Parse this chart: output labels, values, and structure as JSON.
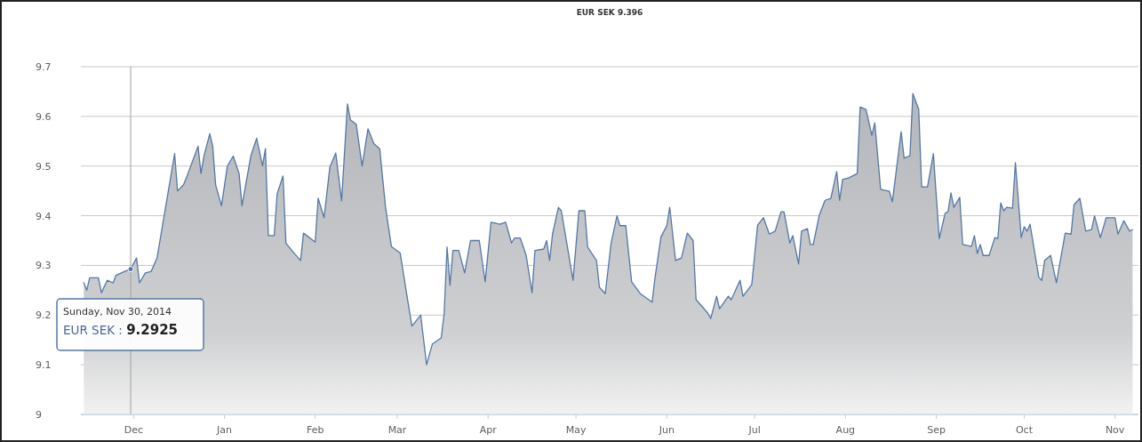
{
  "chart_data": {
    "type": "area",
    "title": "EUR SEK 9.396",
    "xlim": [
      "2014-11-13",
      "2015-11-09"
    ],
    "xticks": [
      {
        "value": "2014-12-01",
        "label": "Dec"
      },
      {
        "value": "2015-01-01",
        "label": "Jan"
      },
      {
        "value": "2015-02-01",
        "label": "Feb"
      },
      {
        "value": "2015-03-01",
        "label": "Mar"
      },
      {
        "value": "2015-04-01",
        "label": "Apr"
      },
      {
        "value": "2015-05-01",
        "label": "May"
      },
      {
        "value": "2015-06-01",
        "label": "Jun"
      },
      {
        "value": "2015-07-01",
        "label": "Jul"
      },
      {
        "value": "2015-08-01",
        "label": "Aug"
      },
      {
        "value": "2015-09-01",
        "label": "Sep"
      },
      {
        "value": "2015-10-01",
        "label": "Oct"
      },
      {
        "value": "2015-11-01",
        "label": "Nov"
      }
    ],
    "ylim": [
      9,
      9.7
    ],
    "yticks": [
      9,
      9.1,
      9.2,
      9.3,
      9.4,
      9.5,
      9.6,
      9.7
    ],
    "grid": "y",
    "marker": "none",
    "line_style": "solid",
    "series": [
      {
        "color": "#5577a6",
        "x": [
          "2014-11-14",
          "2014-11-15",
          "2014-11-16",
          "2014-11-19",
          "2014-11-20",
          "2014-11-22",
          "2014-11-24",
          "2014-11-25",
          "2014-11-28",
          "2014-11-30",
          "2014-12-02",
          "2014-12-03",
          "2014-12-05",
          "2014-12-07",
          "2014-12-09",
          "2014-12-12",
          "2014-12-15",
          "2014-12-16",
          "2014-12-18",
          "2014-12-19",
          "2014-12-23",
          "2014-12-24",
          "2014-12-25",
          "2014-12-27",
          "2014-12-28",
          "2014-12-29",
          "2014-12-31",
          "2015-01-02",
          "2015-01-04",
          "2015-01-06",
          "2015-01-07",
          "2015-01-10",
          "2015-01-12",
          "2015-01-14",
          "2015-01-15",
          "2015-01-16",
          "2015-01-18",
          "2015-01-19",
          "2015-01-21",
          "2015-01-22",
          "2015-01-24",
          "2015-01-27",
          "2015-01-28",
          "2015-02-01",
          "2015-02-02",
          "2015-02-04",
          "2015-02-06",
          "2015-02-08",
          "2015-02-10",
          "2015-02-12",
          "2015-02-13",
          "2015-02-15",
          "2015-02-17",
          "2015-02-19",
          "2015-02-21",
          "2015-02-23",
          "2015-02-25",
          "2015-02-27",
          "2015-03-02",
          "2015-03-04",
          "2015-03-06",
          "2015-03-09",
          "2015-03-11",
          "2015-03-13",
          "2015-03-16",
          "2015-03-17",
          "2015-03-18",
          "2015-03-19",
          "2015-03-20",
          "2015-03-22",
          "2015-03-24",
          "2015-03-26",
          "2015-03-29",
          "2015-03-31",
          "2015-04-02",
          "2015-04-05",
          "2015-04-07",
          "2015-04-09",
          "2015-04-10",
          "2015-04-12",
          "2015-04-14",
          "2015-04-16",
          "2015-04-17",
          "2015-04-20",
          "2015-04-21",
          "2015-04-22",
          "2015-04-23",
          "2015-04-25",
          "2015-04-26",
          "2015-04-30",
          "2015-05-02",
          "2015-05-04",
          "2015-05-05",
          "2015-05-08",
          "2015-05-09",
          "2015-05-11",
          "2015-05-13",
          "2015-05-15",
          "2015-05-16",
          "2015-05-18",
          "2015-05-20",
          "2015-05-23",
          "2015-05-27",
          "2015-05-28",
          "2015-05-30",
          "2015-06-01",
          "2015-06-02",
          "2015-06-04",
          "2015-06-06",
          "2015-06-08",
          "2015-06-10",
          "2015-06-11",
          "2015-06-15",
          "2015-06-16",
          "2015-06-18",
          "2015-06-19",
          "2015-06-22",
          "2015-06-23",
          "2015-06-26",
          "2015-06-27",
          "2015-06-30",
          "2015-07-02",
          "2015-07-04",
          "2015-07-06",
          "2015-07-08",
          "2015-07-10",
          "2015-07-11",
          "2015-07-13",
          "2015-07-14",
          "2015-07-16",
          "2015-07-17",
          "2015-07-19",
          "2015-07-20",
          "2015-07-21",
          "2015-07-23",
          "2015-07-25",
          "2015-07-27",
          "2015-07-29",
          "2015-07-30",
          "2015-07-31",
          "2015-08-02",
          "2015-08-05",
          "2015-08-06",
          "2015-08-08",
          "2015-08-10",
          "2015-08-11",
          "2015-08-13",
          "2015-08-16",
          "2015-08-17",
          "2015-08-20",
          "2015-08-21",
          "2015-08-23",
          "2015-08-24",
          "2015-08-26",
          "2015-08-27",
          "2015-08-29",
          "2015-08-31",
          "2015-09-02",
          "2015-09-04",
          "2015-09-05",
          "2015-09-06",
          "2015-09-07",
          "2015-09-09",
          "2015-09-10",
          "2015-09-13",
          "2015-09-14",
          "2015-09-15",
          "2015-09-16",
          "2015-09-17",
          "2015-09-19",
          "2015-09-21",
          "2015-09-22",
          "2015-09-23",
          "2015-09-24",
          "2015-09-25",
          "2015-09-27",
          "2015-09-28",
          "2015-09-30",
          "2015-10-01",
          "2015-10-02",
          "2015-10-03",
          "2015-10-06",
          "2015-10-07",
          "2015-10-08",
          "2015-10-10",
          "2015-10-12",
          "2015-10-15",
          "2015-10-17",
          "2015-10-18",
          "2015-10-20",
          "2015-10-22",
          "2015-10-24",
          "2015-10-25",
          "2015-10-27",
          "2015-10-29",
          "2015-11-01",
          "2015-11-02",
          "2015-11-04",
          "2015-11-06",
          "2015-11-07"
        ],
        "values": [
          9.265,
          9.25,
          9.275,
          9.275,
          9.245,
          9.27,
          9.265,
          9.28,
          9.288,
          9.2925,
          9.315,
          9.265,
          9.285,
          9.288,
          9.315,
          9.42,
          9.525,
          9.45,
          9.462,
          9.476,
          9.54,
          9.485,
          9.52,
          9.565,
          9.54,
          9.462,
          9.42,
          9.5,
          9.52,
          9.485,
          9.42,
          9.52,
          9.556,
          9.5,
          9.535,
          9.36,
          9.36,
          9.444,
          9.48,
          9.345,
          9.33,
          9.31,
          9.365,
          9.347,
          9.435,
          9.396,
          9.498,
          9.526,
          9.43,
          9.625,
          9.593,
          9.584,
          9.5,
          9.575,
          9.545,
          9.535,
          9.417,
          9.338,
          9.325,
          9.25,
          9.178,
          9.2,
          9.1,
          9.142,
          9.154,
          9.202,
          9.337,
          9.26,
          9.33,
          9.33,
          9.285,
          9.35,
          9.35,
          9.267,
          9.387,
          9.383,
          9.387,
          9.345,
          9.355,
          9.355,
          9.32,
          9.245,
          9.33,
          9.333,
          9.35,
          9.31,
          9.363,
          9.417,
          9.41,
          9.27,
          9.41,
          9.41,
          9.337,
          9.31,
          9.256,
          9.243,
          9.345,
          9.4,
          9.38,
          9.38,
          9.267,
          9.243,
          9.226,
          9.276,
          9.357,
          9.38,
          9.417,
          9.31,
          9.315,
          9.365,
          9.35,
          9.231,
          9.204,
          9.193,
          9.238,
          9.213,
          9.238,
          9.231,
          9.27,
          9.238,
          9.261,
          9.381,
          9.396,
          9.363,
          9.369,
          9.408,
          9.408,
          9.345,
          9.36,
          9.303,
          9.369,
          9.374,
          9.342,
          9.342,
          9.4,
          9.431,
          9.435,
          9.489,
          9.431,
          9.473,
          9.476,
          9.485,
          9.619,
          9.614,
          9.562,
          9.587,
          9.453,
          9.449,
          9.428,
          9.569,
          9.516,
          9.521,
          9.646,
          9.614,
          9.458,
          9.458,
          9.525,
          9.354,
          9.405,
          9.408,
          9.446,
          9.417,
          9.437,
          9.342,
          9.338,
          9.36,
          9.324,
          9.342,
          9.32,
          9.32,
          9.356,
          9.354,
          9.426,
          9.41,
          9.417,
          9.415,
          9.507,
          9.356,
          9.378,
          9.369,
          9.383,
          9.276,
          9.27,
          9.31,
          9.32,
          9.265,
          9.365,
          9.363,
          9.422,
          9.435,
          9.369,
          9.372,
          9.4,
          9.356,
          9.396,
          9.396,
          9.363,
          9.39,
          9.369,
          9.372
        ]
      }
    ],
    "ref_lines": [
      {
        "axis": "x",
        "value": "2014-11-30",
        "color": "#a0a0a0"
      }
    ],
    "annotations": [
      {
        "text": "Sunday, Nov 30, 2014\nEUR SEK : 9.2925",
        "x": "2014-11-30",
        "y": 9.2925
      }
    ]
  }
}
